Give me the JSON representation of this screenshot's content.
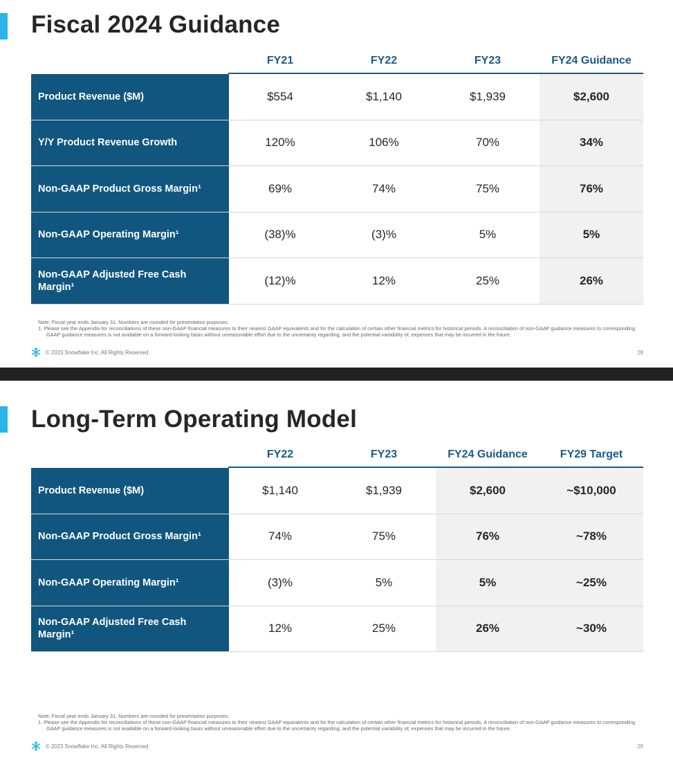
{
  "slide1": {
    "title": "Fiscal 2024 Guidance",
    "headers": [
      "FY21",
      "FY22",
      "FY23",
      "FY24 Guidance"
    ],
    "rows": [
      {
        "label": "Product Revenue ($M)",
        "values": [
          "$554",
          "$1,140",
          "$1,939",
          "$2,600"
        ]
      },
      {
        "label": "Y/Y Product Revenue Growth",
        "values": [
          "120%",
          "106%",
          "70%",
          "34%"
        ]
      },
      {
        "label": "Non-GAAP Product Gross Margin¹",
        "values": [
          "69%",
          "74%",
          "75%",
          "76%"
        ]
      },
      {
        "label": "Non-GAAP Operating Margin¹",
        "values": [
          "(38)%",
          "(3)%",
          "5%",
          "5%"
        ]
      },
      {
        "label": "Non-GAAP Adjusted Free Cash Margin¹",
        "values": [
          "(12)%",
          "12%",
          "25%",
          "26%"
        ]
      }
    ],
    "note_line1": "Note: Fiscal year ends January 31. Numbers are rounded for presentation purposes.",
    "note_line2": "1.  Please see the Appendix for reconciliations of these non-GAAP financial measures to their nearest GAAP equivalents and for the calculation of certain other financial metrics for historical periods. A reconciliation of non-GAAP guidance measures to corresponding GAAP guidance measures is not available on a forward-looking basis without unreasonable effort due to the uncertainty regarding, and the potential variability of, expenses that may be incurred in the future.",
    "copyright": "© 2023 Snowflake Inc. All Rights Reserved",
    "page_number": "28"
  },
  "slide2": {
    "title": "Long-Term Operating Model",
    "headers": [
      "FY22",
      "FY23",
      "FY24 Guidance",
      "FY29 Target"
    ],
    "rows": [
      {
        "label": "Product Revenue ($M)",
        "values": [
          "$1,140",
          "$1,939",
          "$2,600",
          "~$10,000"
        ]
      },
      {
        "label": "Non-GAAP Product Gross Margin¹",
        "values": [
          "74%",
          "75%",
          "76%",
          "~78%"
        ]
      },
      {
        "label": "Non-GAAP Operating Margin¹",
        "values": [
          "(3)%",
          "5%",
          "5%",
          "~25%"
        ]
      },
      {
        "label": "Non-GAAP Adjusted Free Cash Margin¹",
        "values": [
          "12%",
          "25%",
          "26%",
          "~30%"
        ]
      }
    ],
    "note_line1": "Note: Fiscal year ends January 31. Numbers are rounded for presentation purposes.",
    "note_line2": "1.  Please see the Appendix for reconciliations of these non-GAAP financial measures to their nearest GAAP equivalents and for the calculation of certain other financial metrics for historical periods. A reconciliation of non-GAAP guidance measures to corresponding GAAP guidance measures is not available on a forward-looking basis without unreasonable effort due to the uncertainty regarding, and the potential variability of, expenses that may be incurred in the future.",
    "copyright": "© 2023 Snowflake Inc. All Rights Reserved",
    "page_number": "29"
  },
  "colors": {
    "accent": "#29b5e8",
    "label_fill": "#11567f",
    "header_text": "#1a5a8a",
    "shade": "#f1f1f1"
  },
  "icons": {
    "footer_logo": "snowflake-icon"
  }
}
